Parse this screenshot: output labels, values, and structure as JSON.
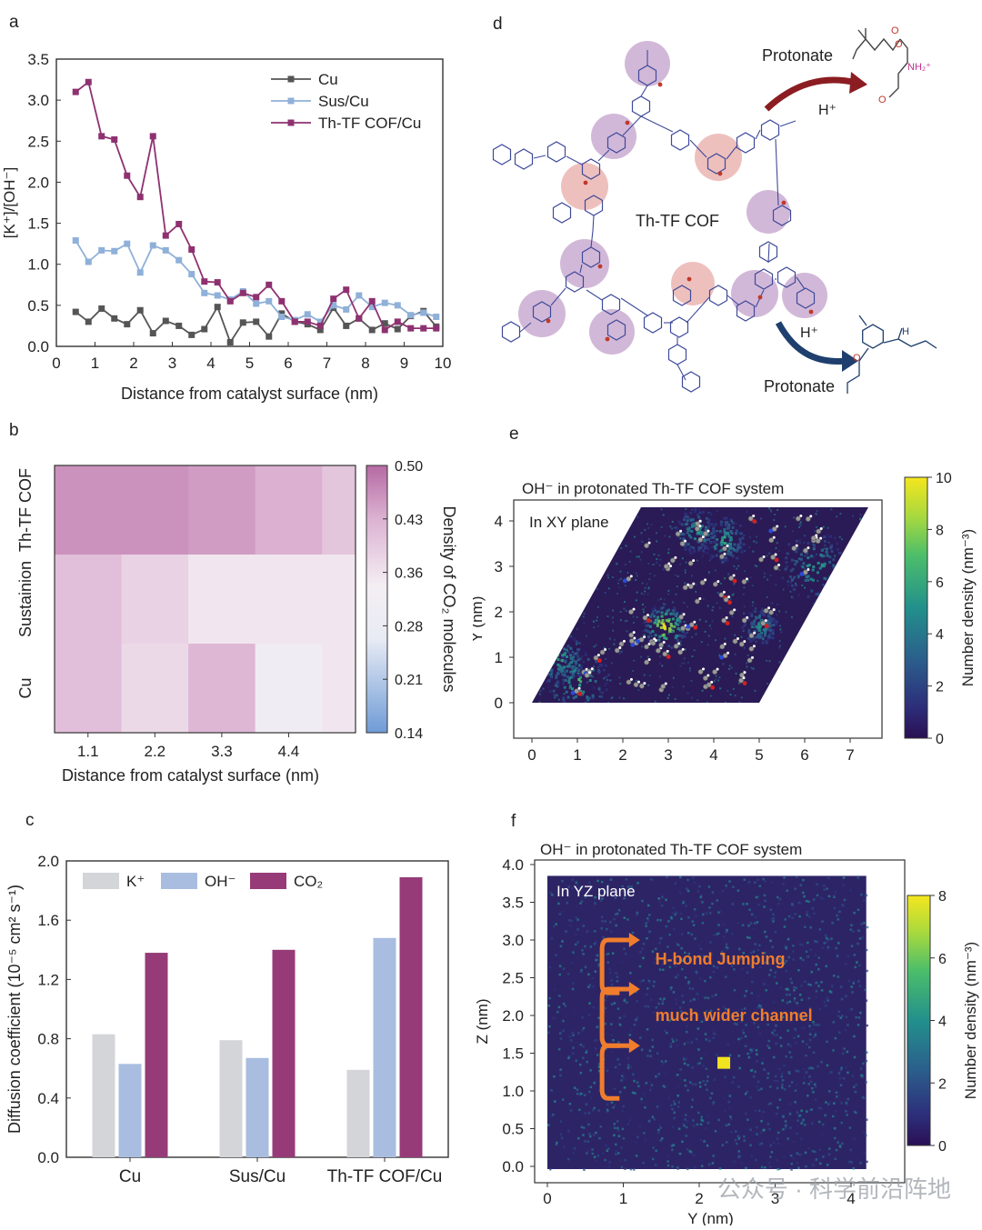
{
  "panels": {
    "a": "a",
    "b": "b",
    "c": "c",
    "d": "d",
    "e": "e",
    "f": "f"
  },
  "watermark": "公众号 · 科学前沿阵地",
  "chart_data": [
    {
      "id": "a",
      "type": "line",
      "xlabel": "Distance from catalyst surface (nm)",
      "ylabel": "[K⁺]/[OH⁻]",
      "xlim": [
        0,
        10
      ],
      "ylim": [
        0,
        3.5
      ],
      "xticks": [
        0,
        1,
        2,
        3,
        4,
        5,
        6,
        7,
        8,
        9,
        10
      ],
      "yticks": [
        0.0,
        0.5,
        1.0,
        1.5,
        2.0,
        2.5,
        3.0,
        3.5
      ],
      "legend_position": "top-right",
      "x": [
        0.5,
        0.83,
        1.17,
        1.5,
        1.83,
        2.17,
        2.5,
        2.83,
        3.17,
        3.5,
        3.83,
        4.17,
        4.5,
        4.83,
        5.17,
        5.5,
        5.83,
        6.17,
        6.5,
        6.83,
        7.17,
        7.5,
        7.83,
        8.17,
        8.5,
        8.83,
        9.17,
        9.5,
        9.83
      ],
      "series": [
        {
          "name": "Cu",
          "color": "#555555",
          "values": [
            0.42,
            0.3,
            0.46,
            0.34,
            0.27,
            0.44,
            0.16,
            0.31,
            0.25,
            0.14,
            0.21,
            0.48,
            0.05,
            0.29,
            0.3,
            0.12,
            0.4,
            0.3,
            0.27,
            0.2,
            0.47,
            0.25,
            0.34,
            0.2,
            0.28,
            0.21,
            0.37,
            0.43,
            0.24
          ]
        },
        {
          "name": "Sus/Cu",
          "color": "#8fb0d8",
          "values": [
            1.29,
            1.03,
            1.17,
            1.16,
            1.25,
            0.9,
            1.23,
            1.17,
            1.05,
            0.88,
            0.65,
            0.62,
            0.57,
            0.67,
            0.52,
            0.55,
            0.36,
            0.32,
            0.39,
            0.3,
            0.5,
            0.45,
            0.62,
            0.48,
            0.53,
            0.5,
            0.38,
            0.41,
            0.36
          ]
        },
        {
          "name": "Th-TF COF/Cu",
          "color": "#8e3170",
          "values": [
            3.1,
            3.22,
            2.56,
            2.52,
            2.08,
            1.82,
            2.56,
            1.35,
            1.49,
            1.18,
            0.79,
            0.78,
            0.55,
            0.65,
            0.6,
            0.75,
            0.55,
            0.3,
            0.3,
            0.25,
            0.58,
            0.69,
            0.34,
            0.55,
            0.2,
            0.3,
            0.22,
            0.22,
            0.22
          ]
        }
      ]
    },
    {
      "id": "b",
      "type": "heatmap",
      "xlabel": "Distance from catalyst surface (nm)",
      "xticks": [
        "1.1",
        "2.2",
        "3.3",
        "4.4"
      ],
      "rows": [
        "Th-TF COF",
        "Sustainion",
        "Cu"
      ],
      "colorbar_label": "Density of CO₂ molecules",
      "colorbar_ticks": [
        "0.50",
        "0.43",
        "0.36",
        "0.28",
        "0.21",
        "0.14"
      ],
      "vrange": [
        0.14,
        0.5
      ],
      "x_edges": [
        0.55,
        1.65,
        2.75,
        3.85,
        4.95,
        5.5
      ],
      "values": [
        [
          0.46,
          0.46,
          0.45,
          0.43,
          0.4
        ],
        [
          0.41,
          0.38,
          0.35,
          0.35,
          0.35
        ],
        [
          0.41,
          0.37,
          0.42,
          0.31,
          0.35
        ]
      ]
    },
    {
      "id": "c",
      "type": "bar",
      "ylabel": "Diffusion coefficient (10⁻⁵ cm² s⁻¹)",
      "categories": [
        "Cu",
        "Sus/Cu",
        "Th-TF COF/Cu"
      ],
      "ylim": [
        0,
        2.0
      ],
      "yticks": [
        "0.0",
        "0.4",
        "0.8",
        "1.2",
        "1.6",
        "2.0"
      ],
      "legend_position": "top-left",
      "series": [
        {
          "name": "K⁺",
          "color": "#d3d5d8",
          "values": [
            0.83,
            0.79,
            0.59
          ]
        },
        {
          "name": "OH⁻",
          "color": "#a9bde0",
          "values": [
            0.63,
            0.67,
            1.48
          ]
        },
        {
          "name": "CO₂",
          "color": "#963b78",
          "values": [
            1.38,
            1.4,
            1.89
          ]
        }
      ]
    },
    {
      "id": "e",
      "type": "heatmap",
      "title": "OH⁻ in protonated Th-TF COF system",
      "annotation": "In XY plane",
      "xlabel": "X (nm)",
      "ylabel": "Y (nm)",
      "xticks": [
        "0",
        "1",
        "2",
        "3",
        "4",
        "5",
        "6",
        "7"
      ],
      "yticks": [
        "0",
        "1",
        "2",
        "3",
        "4"
      ],
      "colorbar_label": "Number density (nm⁻³)",
      "colorbar_ticks": [
        "0",
        "2",
        "4",
        "6",
        "8",
        "10"
      ],
      "vrange": [
        0,
        10
      ]
    },
    {
      "id": "f",
      "type": "heatmap",
      "title": "OH⁻ in protonated Th-TF COF system",
      "annotation": "In YZ plane",
      "arrow_labels": [
        "H-bond Jumping",
        "much wider channel"
      ],
      "xlabel": "Y (nm)",
      "ylabel": "Z (nm)",
      "xticks": [
        "0",
        "1",
        "2",
        "3",
        "4"
      ],
      "yticks": [
        "0.0",
        "0.5",
        "1.0",
        "1.5",
        "2.0",
        "2.5",
        "3.0",
        "3.5",
        "4.0"
      ],
      "colorbar_label": "Number density (nm⁻³)",
      "colorbar_ticks": [
        "0",
        "2",
        "4",
        "6",
        "8"
      ],
      "vrange": [
        0,
        8
      ]
    }
  ],
  "diagram_d": {
    "center_label": "Th-TF COF",
    "top_label": "Protonate",
    "top_ion": "H⁺",
    "bottom_label": "Protonate",
    "bottom_ion": "H⁺",
    "nh2_label": "NH₂⁺",
    "nh_label": "H"
  }
}
